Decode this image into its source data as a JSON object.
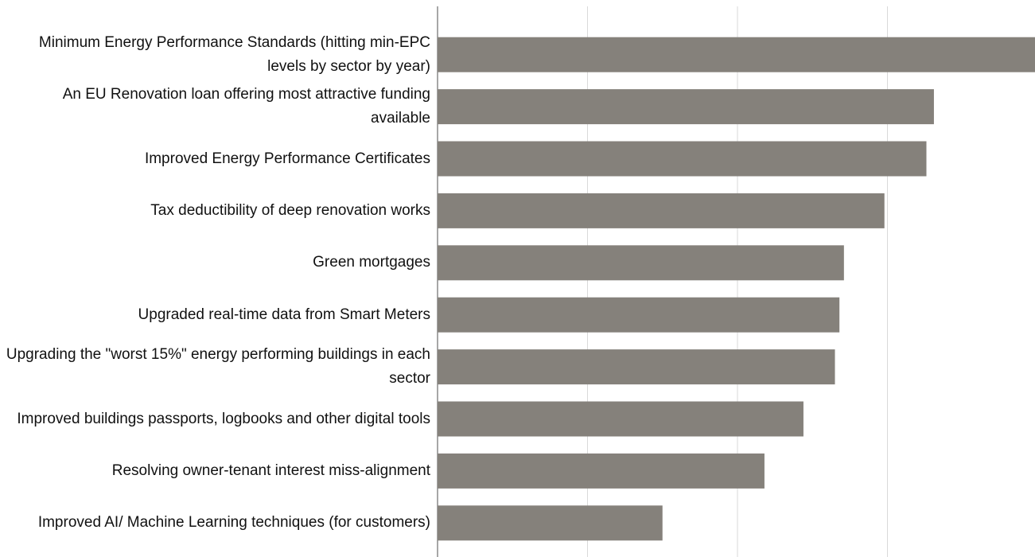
{
  "chart_data": {
    "type": "barh",
    "categories": [
      "Minimum Energy Performance Standards (hitting min-EPC levels by sector by year)",
      "An EU Renovation loan offering most attractive funding available",
      "Improved Energy Performance Certificates",
      "Tax deductibility of deep renovation works",
      "Green mortgages",
      "Upgraded real-time data from Smart Meters",
      "Upgrading the \"worst 15%\" energy performing buildings in each sector",
      "Improved buildings passports, logbooks and other digital tools",
      "Resolving owner-tenant interest miss-alignment",
      "Improved AI/ Machine Learning techniques (for customers)"
    ],
    "values": [
      4.0,
      3.31,
      3.26,
      2.98,
      2.71,
      2.68,
      2.65,
      2.44,
      2.18,
      1.5
    ],
    "color": "#85817b",
    "xlim": [
      0,
      4
    ],
    "xticks": [
      0,
      1,
      2,
      3,
      4
    ],
    "grid": true
  }
}
